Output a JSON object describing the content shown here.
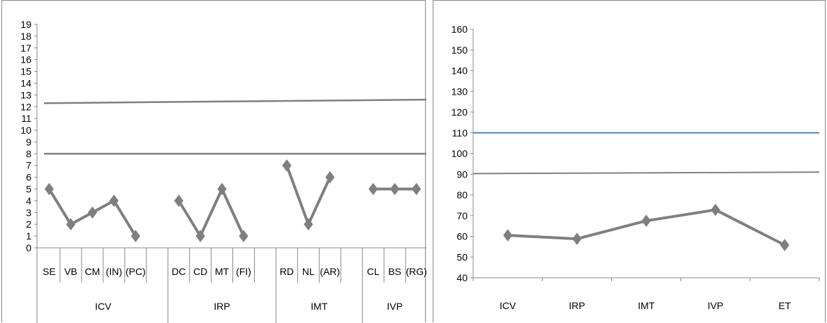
{
  "chart_data": [
    {
      "type": "line",
      "ylim": [
        0,
        19
      ],
      "yticks": [
        0,
        1,
        2,
        3,
        4,
        5,
        6,
        7,
        8,
        9,
        10,
        11,
        12,
        13,
        14,
        15,
        16,
        17,
        18,
        19
      ],
      "groups": [
        {
          "label": "ICV",
          "categories": [
            "SE",
            "VB",
            "CM",
            "(IN)",
            "(PC)"
          ],
          "values": [
            5,
            2,
            3,
            4,
            1
          ]
        },
        {
          "label": "IRP",
          "categories": [
            "DC",
            "CD",
            "MT",
            "(FI)"
          ],
          "values": [
            4,
            1,
            5,
            1
          ]
        },
        {
          "label": "IMT",
          "categories": [
            "RD",
            "NL",
            "(AR)"
          ],
          "values": [
            7,
            2,
            6
          ]
        },
        {
          "label": "IVP",
          "categories": [
            "CL",
            "BS",
            "(RG)"
          ],
          "values": [
            5,
            5,
            5
          ]
        }
      ],
      "reference_lines": [
        {
          "y_start": 8.0,
          "y_end": 8.0,
          "color": "#7f7f7f"
        },
        {
          "y_start": 12.3,
          "y_end": 12.6,
          "color": "#7f7f7f"
        }
      ],
      "series_color": "#7f7f7f",
      "marker": "diamond"
    },
    {
      "type": "line",
      "ylim": [
        40,
        160
      ],
      "yticks": [
        40,
        50,
        60,
        70,
        80,
        90,
        100,
        110,
        120,
        130,
        140,
        150,
        160
      ],
      "categories": [
        "ICV",
        "IRP",
        "IMT",
        "IVP",
        "ET"
      ],
      "values": [
        60.5,
        58.8,
        67.5,
        72.8,
        55.8
      ],
      "reference_lines": [
        {
          "y_start": 110,
          "y_end": 110,
          "color": "#4f81bd"
        },
        {
          "y_start": 90.3,
          "y_end": 91.0,
          "color": "#7f7f7f"
        }
      ],
      "series_color": "#7f7f7f",
      "marker": "diamond"
    }
  ]
}
